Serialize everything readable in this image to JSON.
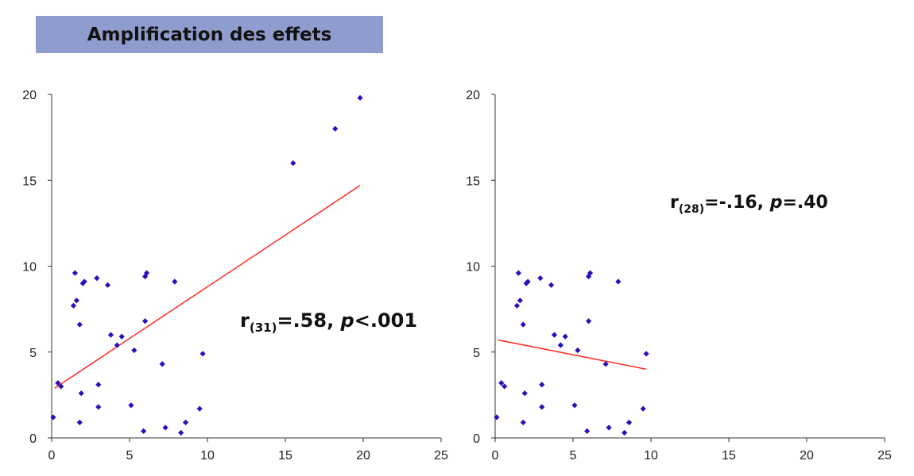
{
  "banner": {
    "title": "Amplification des effets"
  },
  "colors": {
    "banner": "#8e9dce",
    "points": "#2a10b8",
    "trend": "#ff2a1f",
    "axis": "#333333"
  },
  "chart_data": [
    {
      "type": "scatter",
      "title": "",
      "xlabel": "",
      "ylabel": "",
      "xlim": [
        0,
        25
      ],
      "ylim": [
        0,
        20
      ],
      "xticks": [
        0,
        5,
        10,
        15,
        20,
        25
      ],
      "yticks": [
        0,
        5,
        10,
        15,
        20
      ],
      "grid": false,
      "annotation": {
        "r": "r",
        "sub": "(31)",
        "mid": "=.58, ",
        "p": "p",
        "tail": "<.001"
      },
      "trendline": {
        "x": [
          0.2,
          19.8
        ],
        "y": [
          2.9,
          14.7
        ]
      },
      "series": [
        {
          "x": [
            0.1,
            0.4,
            0.6,
            1.4,
            1.5,
            1.6,
            1.8,
            1.9,
            1.8,
            2.0,
            2.1,
            2.9,
            3.0,
            3.0,
            3.6,
            3.8,
            4.2,
            4.5,
            5.1,
            5.3,
            5.9,
            6.0,
            6.1,
            6.0,
            7.1,
            7.3,
            7.9,
            8.3,
            8.6,
            9.5,
            9.7,
            15.5,
            18.2,
            19.8
          ],
          "y": [
            1.2,
            3.2,
            3.0,
            7.7,
            9.6,
            8.0,
            6.6,
            2.6,
            0.9,
            9.0,
            9.1,
            9.3,
            1.8,
            3.1,
            8.9,
            6.0,
            5.4,
            5.9,
            1.9,
            5.1,
            0.4,
            9.4,
            9.6,
            6.8,
            4.3,
            0.6,
            9.1,
            0.3,
            0.9,
            1.7,
            4.9,
            16.0,
            18.0,
            19.8
          ]
        }
      ]
    },
    {
      "type": "scatter",
      "title": "",
      "xlabel": "",
      "ylabel": "",
      "xlim": [
        0,
        25
      ],
      "ylim": [
        0,
        20
      ],
      "xticks": [
        0,
        5,
        10,
        15,
        20,
        25
      ],
      "yticks": [
        0,
        5,
        10,
        15,
        20
      ],
      "grid": false,
      "annotation": {
        "r": "r",
        "sub": "(28)",
        "mid": "=-.16, ",
        "p": "p",
        "tail": "=.40"
      },
      "trendline": {
        "x": [
          0.2,
          9.7
        ],
        "y": [
          5.7,
          4.0
        ]
      },
      "series": [
        {
          "x": [
            0.1,
            0.4,
            0.6,
            1.4,
            1.5,
            1.6,
            1.8,
            1.9,
            1.8,
            2.0,
            2.1,
            2.9,
            3.0,
            3.0,
            3.6,
            3.8,
            4.2,
            4.5,
            5.1,
            5.3,
            5.9,
            6.0,
            6.1,
            6.0,
            7.1,
            7.3,
            7.9,
            8.3,
            8.6,
            9.5,
            9.7
          ],
          "y": [
            1.2,
            3.2,
            3.0,
            7.7,
            9.6,
            8.0,
            6.6,
            2.6,
            0.9,
            9.0,
            9.1,
            9.3,
            1.8,
            3.1,
            8.9,
            6.0,
            5.4,
            5.9,
            1.9,
            5.1,
            0.4,
            9.4,
            9.6,
            6.8,
            4.3,
            0.6,
            9.1,
            0.3,
            0.9,
            1.7,
            4.9
          ]
        }
      ]
    }
  ]
}
